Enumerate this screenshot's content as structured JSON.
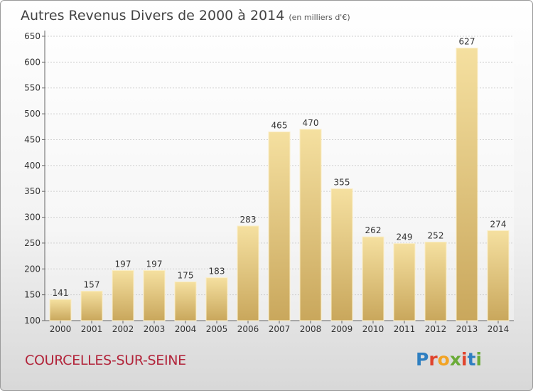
{
  "header": {
    "title": "Autres Revenus Divers de 2000 à 2014",
    "subtitle": "(en milliers d'€)"
  },
  "footer": {
    "commune": "COURCELLES-SUR-SEINE",
    "logo": "Proxiti"
  },
  "logo_colors": [
    "#2f7fc1",
    "#e0432c",
    "#f2a324",
    "#6aab37",
    "#e0432c",
    "#2f7fc1",
    "#6aab37"
  ],
  "colors": {
    "bar_light": "#f5e0a0",
    "bar_dark": "#c9a75c",
    "grid": "#cfcfcf",
    "title": "#444444",
    "commune": "#b2243a"
  },
  "chart_data": {
    "type": "bar",
    "title": "Autres Revenus Divers de 2000 à 2014",
    "subtitle": "(en milliers d'€)",
    "categories": [
      "2000",
      "2001",
      "2002",
      "2003",
      "2004",
      "2005",
      "2006",
      "2007",
      "2008",
      "2009",
      "2010",
      "2011",
      "2012",
      "2013",
      "2014"
    ],
    "values": [
      141,
      157,
      197,
      197,
      175,
      183,
      283,
      465,
      470,
      355,
      262,
      249,
      252,
      627,
      274
    ],
    "ylim": [
      100,
      650
    ],
    "yticks": [
      100,
      150,
      200,
      250,
      300,
      350,
      400,
      450,
      500,
      550,
      600,
      650
    ],
    "grid": true,
    "data_labels": true
  }
}
